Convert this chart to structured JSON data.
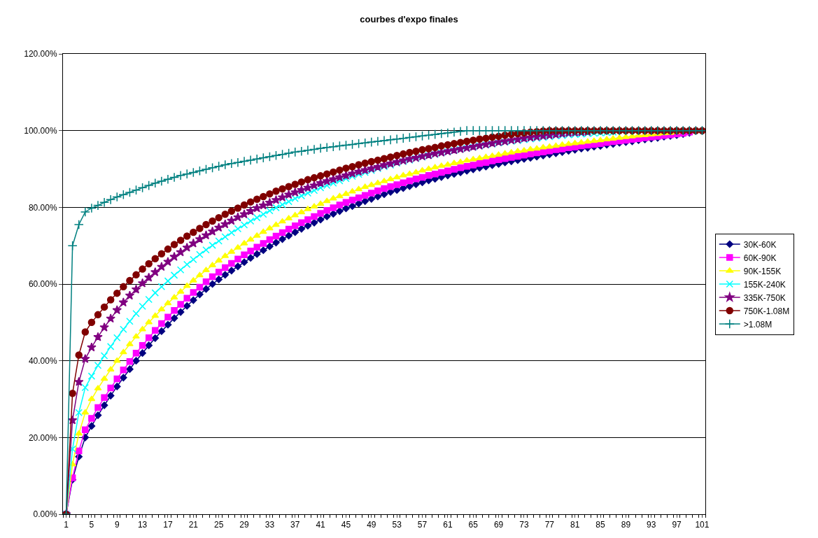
{
  "chart_data": {
    "type": "line",
    "title": "courbes d'expo finales",
    "x": [
      1,
      2,
      3,
      4,
      5,
      6,
      7,
      8,
      9,
      10,
      11,
      12,
      13,
      14,
      15,
      16,
      17,
      18,
      19,
      20,
      21,
      22,
      23,
      24,
      25,
      26,
      27,
      28,
      29,
      30,
      31,
      32,
      33,
      34,
      35,
      36,
      37,
      38,
      39,
      40,
      41,
      42,
      43,
      44,
      45,
      46,
      47,
      48,
      49,
      50,
      51,
      52,
      53,
      54,
      55,
      56,
      57,
      58,
      59,
      60,
      61,
      62,
      63,
      64,
      65,
      66,
      67,
      68,
      69,
      70,
      71,
      72,
      73,
      74,
      75,
      76,
      77,
      78,
      79,
      80,
      81,
      82,
      83,
      84,
      85,
      86,
      87,
      88,
      89,
      90,
      91,
      92,
      93,
      94,
      95,
      96,
      97,
      98,
      99,
      100,
      101
    ],
    "xlim": [
      0.5,
      101.5
    ],
    "xticks": [
      1,
      5,
      9,
      13,
      17,
      21,
      25,
      29,
      33,
      37,
      41,
      45,
      49,
      53,
      57,
      61,
      65,
      69,
      73,
      77,
      81,
      85,
      89,
      93,
      97,
      101
    ],
    "ylim": [
      0,
      120
    ],
    "yticks": [
      {
        "value": 0,
        "label": "0.00%"
      },
      {
        "value": 20,
        "label": "20.00%"
      },
      {
        "value": 40,
        "label": "40.00%"
      },
      {
        "value": 60,
        "label": "60.00%"
      },
      {
        "value": 80,
        "label": "80.00%"
      },
      {
        "value": 100,
        "label": "100.00%"
      },
      {
        "value": 120,
        "label": "120.00%"
      }
    ],
    "grid": "y",
    "legend": "right",
    "line_style": "solid",
    "series": [
      {
        "name": "30K-60K",
        "color": "#000080",
        "marker": "diamond",
        "values": [
          0,
          9,
          15,
          20,
          23,
          25.8,
          28.4,
          30.9,
          33.3,
          35.6,
          37.8,
          40,
          42,
          44,
          45.9,
          47.7,
          49.4,
          51.1,
          52.7,
          54.3,
          55.8,
          57.3,
          58.7,
          60,
          61.2,
          62.4,
          63.5,
          64.6,
          65.7,
          66.8,
          67.8,
          68.8,
          69.8,
          70.8,
          71.7,
          72.6,
          73.5,
          74.4,
          75.2,
          76,
          76.8,
          77.6,
          78.3,
          79,
          79.7,
          80.3,
          81,
          81.6,
          82.2,
          82.8,
          83.4,
          84,
          84.5,
          85,
          85.5,
          86,
          86.5,
          87,
          87.4,
          87.9,
          88.3,
          88.7,
          89.1,
          89.5,
          89.9,
          90.3,
          90.6,
          91,
          91.3,
          91.7,
          92,
          92.3,
          92.6,
          92.9,
          93.2,
          93.5,
          93.8,
          94.1,
          94.4,
          94.7,
          95,
          95.3,
          95.5,
          95.8,
          96,
          96.3,
          96.5,
          96.8,
          97,
          97.2,
          97.5,
          97.7,
          97.9,
          98.1,
          98.4,
          98.6,
          98.8,
          99.1,
          99.4,
          null,
          null
        ]
      },
      {
        "name": "60K-90K",
        "color": "#ff00ff",
        "marker": "square",
        "values": [
          0,
          9.5,
          16.5,
          22,
          25,
          27.8,
          30.4,
          32.9,
          35.3,
          37.6,
          39.8,
          42,
          44,
          46,
          47.9,
          49.7,
          51.4,
          53.1,
          54.7,
          56.3,
          57.8,
          59.2,
          60.6,
          61.9,
          63.1,
          64.3,
          65.4,
          66.5,
          67.6,
          68.6,
          69.6,
          70.6,
          71.6,
          72.5,
          73.4,
          74.3,
          75.2,
          76,
          76.8,
          77.6,
          78.4,
          79.2,
          79.9,
          80.6,
          81.3,
          81.9,
          82.5,
          83.1,
          83.7,
          84.3,
          84.9,
          85.4,
          85.9,
          86.4,
          86.9,
          87.4,
          87.8,
          88.3,
          88.7,
          89.1,
          89.5,
          89.9,
          90.3,
          90.7,
          91,
          91.4,
          91.7,
          92.1,
          92.4,
          92.7,
          93,
          93.3,
          93.6,
          93.9,
          94.2,
          94.4,
          94.7,
          95,
          95.2,
          95.5,
          95.7,
          96,
          96.2,
          96.4,
          96.6,
          96.9,
          97.1,
          97.3,
          97.5,
          97.7,
          97.9,
          98.1,
          98.3,
          98.5,
          98.7,
          98.9,
          99.1,
          99.3,
          99.6,
          null,
          null
        ]
      },
      {
        "name": "90K-155K",
        "color": "#ffff00",
        "marker": "triangle",
        "values": [
          0,
          13,
          21,
          26.5,
          30,
          32.8,
          35.3,
          37.7,
          40,
          42.2,
          44.3,
          46.3,
          48.2,
          50,
          51.7,
          53.4,
          55,
          56.5,
          58,
          59.5,
          60.9,
          62.3,
          63.6,
          64.9,
          66.1,
          67.3,
          68.4,
          69.5,
          70.6,
          71.6,
          72.6,
          73.6,
          74.5,
          75.4,
          76.3,
          77.1,
          77.9,
          78.7,
          79.5,
          80.2,
          80.9,
          81.6,
          82.3,
          82.9,
          83.5,
          84.1,
          84.7,
          85.3,
          85.8,
          86.3,
          86.8,
          87.3,
          87.8,
          88.3,
          88.7,
          89.1,
          89.6,
          90,
          90.4,
          90.8,
          91.1,
          91.5,
          91.8,
          92.2,
          92.5,
          92.8,
          93.1,
          93.4,
          93.7,
          94,
          94.3,
          94.6,
          94.8,
          95.1,
          95.3,
          95.6,
          95.8,
          96,
          96.3,
          96.5,
          96.7,
          96.9,
          97.1,
          97.3,
          97.5,
          97.7,
          97.9,
          98.1,
          98.3,
          98.5,
          98.7,
          98.8,
          99,
          99.1,
          99.3,
          99.4,
          99.6,
          null,
          null,
          null,
          null
        ]
      },
      {
        "name": "155K-240K",
        "color": "#00ffff",
        "marker": "x",
        "values": [
          0,
          17,
          26.5,
          33,
          36,
          38.8,
          41.3,
          43.7,
          46,
          48.2,
          50.3,
          52.3,
          54.2,
          56,
          57.7,
          59.3,
          60.8,
          62.3,
          63.7,
          65.1,
          66.4,
          67.7,
          68.9,
          70.1,
          71.2,
          72.3,
          73.4,
          74.4,
          75.4,
          76.4,
          77.3,
          78.2,
          79.1,
          79.9,
          80.7,
          81.5,
          82.3,
          83,
          83.7,
          84.4,
          85.1,
          85.7,
          86.3,
          86.9,
          87.5,
          88.1,
          88.6,
          89.1,
          89.6,
          90.1,
          90.6,
          91,
          91.5,
          91.9,
          92.3,
          92.7,
          93.1,
          93.5,
          93.8,
          94.2,
          94.5,
          94.8,
          95.1,
          95.4,
          95.7,
          96,
          96.3,
          96.5,
          96.8,
          97,
          97.2,
          97.4,
          97.6,
          97.8,
          98,
          98.2,
          98.4,
          98.6,
          98.7,
          98.9,
          99,
          99.1,
          99.2,
          99.3,
          99.4,
          99.5,
          99.6,
          null,
          null,
          null,
          null,
          null,
          null,
          null,
          null,
          null,
          null,
          null,
          null,
          null,
          null
        ]
      },
      {
        "name": "335K-750K",
        "color": "#800080",
        "marker": "star",
        "values": [
          0,
          24.5,
          34.5,
          40.5,
          43.5,
          46.2,
          48.7,
          51,
          53.2,
          55.2,
          57,
          58.6,
          60.2,
          61.7,
          63.1,
          64.5,
          65.8,
          67.1,
          68.3,
          69.5,
          70.6,
          71.7,
          72.7,
          73.7,
          74.7,
          75.6,
          76.5,
          77.4,
          78.2,
          79,
          79.8,
          80.5,
          81.2,
          81.9,
          82.6,
          83.3,
          83.9,
          84.5,
          85.1,
          85.7,
          86.3,
          86.8,
          87.3,
          87.8,
          88.3,
          88.8,
          89.3,
          89.7,
          90.1,
          90.5,
          91,
          91.4,
          91.8,
          92.2,
          92.6,
          92.9,
          93.3,
          93.6,
          94,
          94.3,
          94.6,
          94.9,
          95.2,
          95.5,
          95.8,
          96.1,
          96.4,
          96.7,
          97,
          97.2,
          97.5,
          97.7,
          98,
          98.2,
          98.4,
          98.6,
          98.8,
          99,
          99.2,
          99.4,
          99.5,
          99.6,
          99.7,
          null,
          null,
          null,
          null,
          null,
          null,
          null,
          null,
          null,
          null,
          null,
          null,
          null,
          null,
          null,
          null,
          null,
          null
        ]
      },
      {
        "name": "750K-1.08M",
        "color": "#800000",
        "marker": "circle",
        "values": [
          0,
          31.5,
          41.5,
          47.5,
          50,
          52,
          54,
          55.9,
          57.6,
          59.3,
          60.9,
          62.4,
          63.9,
          65.3,
          66.6,
          67.9,
          69.1,
          70.3,
          71.4,
          72.5,
          73.5,
          74.5,
          75.5,
          76.4,
          77.3,
          78.2,
          79,
          79.8,
          80.6,
          81.4,
          82.1,
          82.8,
          83.5,
          84.2,
          84.8,
          85.4,
          86,
          86.6,
          87.2,
          87.7,
          88.2,
          88.7,
          89.2,
          89.7,
          90.2,
          90.6,
          91.1,
          91.5,
          91.9,
          92.3,
          92.7,
          93.1,
          93.5,
          93.9,
          94.3,
          94.6,
          95,
          95.3,
          95.6,
          96,
          96.3,
          96.6,
          96.9,
          97.2,
          97.5,
          97.8,
          98,
          98.3,
          98.5,
          98.8,
          99,
          99.2,
          99.4,
          99.6,
          99.7,
          99.9,
          100,
          100,
          100,
          100,
          100,
          100,
          100,
          100,
          100,
          100,
          100,
          100,
          100,
          100,
          100,
          100,
          100,
          100,
          100,
          100,
          100,
          100,
          100,
          100,
          100
        ]
      },
      {
        "name": ">1.08M",
        "color": "#008080",
        "marker": "cross",
        "values": [
          0,
          70,
          75.5,
          78.8,
          79.8,
          80.5,
          81.3,
          82,
          82.7,
          83.3,
          83.9,
          84.5,
          85.1,
          85.7,
          86.3,
          86.8,
          87.3,
          87.8,
          88.3,
          88.7,
          89.1,
          89.5,
          89.9,
          90.3,
          90.7,
          91.1,
          91.4,
          91.7,
          92,
          92.3,
          92.6,
          92.9,
          93.2,
          93.5,
          93.8,
          94.1,
          94.4,
          94.6,
          94.9,
          95.1,
          95.4,
          95.6,
          95.8,
          96,
          96.2,
          96.4,
          96.6,
          96.8,
          97,
          97.2,
          97.4,
          97.6,
          97.8,
          98,
          98.2,
          98.4,
          98.6,
          98.8,
          99,
          99.2,
          99.4,
          99.6,
          99.8,
          100,
          100,
          100,
          100,
          100,
          100,
          100,
          100,
          100,
          100,
          100,
          100,
          100,
          100,
          100,
          100,
          100,
          100,
          100,
          100,
          100,
          100,
          100,
          100,
          100,
          100,
          100,
          100,
          100,
          100,
          100,
          100,
          100,
          100,
          100,
          100,
          100,
          100
        ]
      }
    ]
  }
}
